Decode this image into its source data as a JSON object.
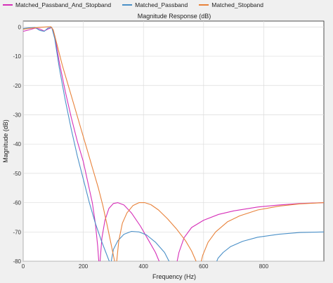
{
  "chart_data": {
    "type": "line",
    "title": "Magnitude Response (dB)",
    "xlabel": "Frequency (Hz)",
    "ylabel": "Magnitude (dB)",
    "xlim": [
      0,
      1000
    ],
    "ylim": [
      -80,
      2
    ],
    "xticks": [
      0,
      200,
      400,
      600,
      800
    ],
    "yticks": [
      0,
      -10,
      -20,
      -30,
      -40,
      -50,
      -60,
      -70,
      -80
    ],
    "grid": true,
    "legend_position": "top",
    "series": [
      {
        "name": "Matched_Passband_And_Stopband",
        "color": "#d62fb8",
        "points": [
          [
            0,
            -1.5
          ],
          [
            20,
            -1
          ],
          [
            40,
            -0.4
          ],
          [
            55,
            -0.7
          ],
          [
            70,
            -1.4
          ],
          [
            85,
            -0.6
          ],
          [
            95,
            -0.2
          ],
          [
            105,
            -3
          ],
          [
            120,
            -12
          ],
          [
            140,
            -22
          ],
          [
            160,
            -31
          ],
          [
            180,
            -39
          ],
          [
            200,
            -46
          ],
          [
            215,
            -53
          ],
          [
            230,
            -60
          ],
          [
            240,
            -67
          ],
          [
            248,
            -75
          ],
          [
            252,
            -81
          ]
        ]
      },
      {
        "name": "Matched_Passband_And_Stopband",
        "color": "#d62fb8",
        "points": [
          [
            255,
            -81
          ],
          [
            262,
            -72
          ],
          [
            272,
            -66
          ],
          [
            285,
            -62
          ],
          [
            300,
            -60.3
          ],
          [
            315,
            -60
          ],
          [
            335,
            -60.8
          ],
          [
            360,
            -63.5
          ],
          [
            390,
            -68
          ],
          [
            415,
            -72.5
          ],
          [
            440,
            -77
          ],
          [
            452,
            -80
          ],
          [
            456,
            -81
          ]
        ]
      },
      {
        "name": "Matched_Passband_And_Stopband",
        "color": "#d62fb8",
        "points": [
          [
            510,
            -81
          ],
          [
            518,
            -77
          ],
          [
            535,
            -72
          ],
          [
            560,
            -68.5
          ],
          [
            600,
            -66
          ],
          [
            650,
            -64
          ],
          [
            700,
            -62.8
          ],
          [
            780,
            -61.5
          ],
          [
            850,
            -60.8
          ],
          [
            920,
            -60.3
          ],
          [
            1000,
            -60
          ]
        ]
      },
      {
        "name": "Matched_Passband",
        "color": "#4a90c8",
        "points": [
          [
            0,
            -0.5
          ],
          [
            20,
            -0.3
          ],
          [
            40,
            -0.2
          ],
          [
            55,
            -1.2
          ],
          [
            70,
            -1.5
          ],
          [
            82,
            -0.4
          ],
          [
            95,
            -0.2
          ],
          [
            105,
            -4
          ],
          [
            120,
            -14
          ],
          [
            140,
            -25
          ],
          [
            160,
            -35
          ],
          [
            180,
            -44
          ],
          [
            200,
            -52
          ],
          [
            220,
            -60
          ],
          [
            240,
            -67
          ],
          [
            260,
            -73
          ],
          [
            275,
            -77
          ],
          [
            288,
            -80.5
          ]
        ]
      },
      {
        "name": "Matched_Passband",
        "color": "#4a90c8",
        "points": [
          [
            292,
            -80.5
          ],
          [
            300,
            -76
          ],
          [
            315,
            -73
          ],
          [
            335,
            -70.8
          ],
          [
            360,
            -69.8
          ],
          [
            385,
            -70
          ],
          [
            410,
            -71
          ],
          [
            440,
            -73.5
          ],
          [
            470,
            -77
          ],
          [
            485,
            -80
          ],
          [
            490,
            -81
          ]
        ]
      },
      {
        "name": "Matched_Passband",
        "color": "#4a90c8",
        "points": [
          [
            640,
            -81
          ],
          [
            648,
            -79
          ],
          [
            665,
            -77
          ],
          [
            690,
            -75
          ],
          [
            730,
            -73.2
          ],
          [
            780,
            -71.8
          ],
          [
            850,
            -70.8
          ],
          [
            920,
            -70.2
          ],
          [
            1000,
            -70
          ]
        ]
      },
      {
        "name": "Matched_Stopband",
        "color": "#e8823a",
        "points": [
          [
            0,
            -0.8
          ],
          [
            20,
            -0.5
          ],
          [
            40,
            -0.3
          ],
          [
            60,
            -0.1
          ],
          [
            80,
            0
          ],
          [
            92,
            0.1
          ],
          [
            100,
            -1
          ],
          [
            115,
            -7
          ],
          [
            130,
            -13
          ],
          [
            150,
            -20
          ],
          [
            170,
            -27
          ],
          [
            190,
            -34
          ],
          [
            210,
            -41
          ],
          [
            230,
            -48
          ],
          [
            250,
            -55
          ],
          [
            265,
            -61
          ],
          [
            280,
            -68
          ],
          [
            292,
            -74
          ],
          [
            300,
            -78
          ],
          [
            306,
            -81
          ]
        ]
      },
      {
        "name": "Matched_Stopband",
        "color": "#e8823a",
        "points": [
          [
            310,
            -81
          ],
          [
            318,
            -73
          ],
          [
            330,
            -67
          ],
          [
            345,
            -63.5
          ],
          [
            365,
            -61
          ],
          [
            385,
            -60
          ],
          [
            405,
            -60
          ],
          [
            425,
            -60.7
          ],
          [
            450,
            -62.5
          ],
          [
            480,
            -65.5
          ],
          [
            510,
            -69
          ],
          [
            540,
            -73
          ],
          [
            560,
            -76.5
          ],
          [
            575,
            -80
          ],
          [
            580,
            -81
          ]
        ]
      },
      {
        "name": "Matched_Stopband",
        "color": "#e8823a",
        "points": [
          [
            590,
            -81
          ],
          [
            597,
            -78
          ],
          [
            615,
            -73.5
          ],
          [
            640,
            -70
          ],
          [
            680,
            -66.5
          ],
          [
            720,
            -64.5
          ],
          [
            780,
            -62.5
          ],
          [
            850,
            -61.2
          ],
          [
            920,
            -60.4
          ],
          [
            1000,
            -60
          ]
        ]
      }
    ]
  }
}
